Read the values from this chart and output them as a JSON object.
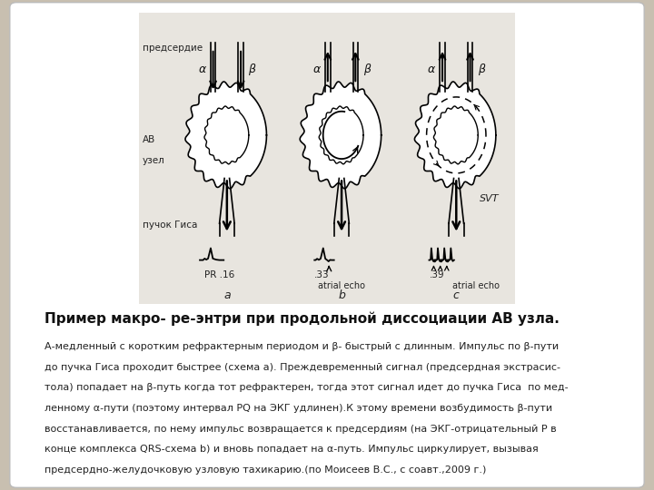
{
  "bg_color": "#c8bfb0",
  "card_bg": "#ffffff",
  "panel_bg": "#e8e5df",
  "title": "Пример макро- ре-энтри при продольной диссоциации АВ узла.",
  "body_lines": [
    "А-медленный с коротким рефрактерным периодом и β- быстрый с длинным. Импульс по β-пути",
    "до пучка Гиса проходит быстрее (схема а). Преждевременный сигнал (предсердная экстрасис-",
    "тола) попадает на β-путь когда тот рефрактерен, тогда этот сигнал идет до пучка Гиса  по мед-",
    "ленному α-пути (поэтому интервал PQ на ЭКГ удлинен).К этому времени возбудимость β-пути",
    "восстанавливается, по нему импульс возвращается к предсердиям (на ЭКГ-отрицательный Р в",
    "конце комплекса QRS-схема b) и вновь попадает на α-путь. Импульс циркулирует, вызывая",
    "предсердно-желудочковую узловую тахикарию.(по Моисеев В.С., с соавт.,2009 г.)"
  ],
  "label_predserdiye": "предсердие",
  "label_av": "АВ",
  "label_uzel": "узел",
  "label_puchok": "пучок Гиса",
  "label_alpha": "α",
  "label_beta": "β",
  "label_svt": "SVT",
  "label_atrial_echo": "atrial echo",
  "label_pr16": "PR .16",
  "label_33": ".33",
  "label_39": ".39",
  "label_a": "a",
  "label_b": "b",
  "label_c": "c"
}
